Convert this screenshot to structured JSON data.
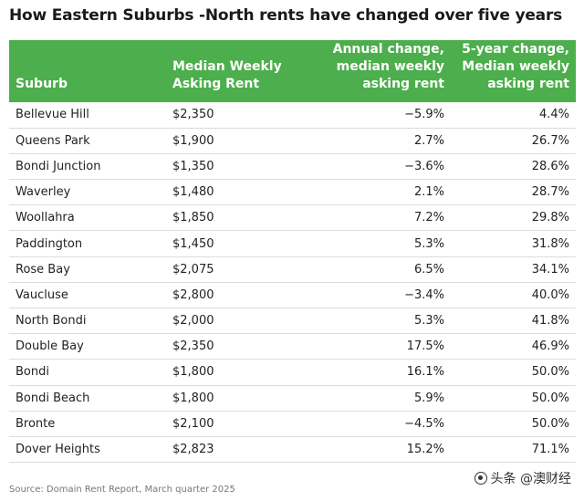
{
  "title": "How Eastern Suburbs -North rents have changed over five years",
  "table": {
    "headers": {
      "suburb": "Suburb",
      "rent_line1": "Median Weekly",
      "rent_line2": "Asking Rent",
      "annual_line1": "Annual change,",
      "annual_line2": "median weekly",
      "annual_line3": "asking rent",
      "five_line1": "5-year change,",
      "five_line2": "Median weekly",
      "five_line3": "asking rent"
    },
    "header_color": "#4cae4c",
    "rows": [
      {
        "suburb": "Bellevue Hill",
        "rent": "$2,350",
        "annual": "−5.9%",
        "five": "4.4%"
      },
      {
        "suburb": "Queens Park",
        "rent": "$1,900",
        "annual": "2.7%",
        "five": "26.7%"
      },
      {
        "suburb": "Bondi Junction",
        "rent": "$1,350",
        "annual": "−3.6%",
        "five": "28.6%"
      },
      {
        "suburb": "Waverley",
        "rent": "$1,480",
        "annual": "2.1%",
        "five": "28.7%"
      },
      {
        "suburb": "Woollahra",
        "rent": "$1,850",
        "annual": "7.2%",
        "five": "29.8%"
      },
      {
        "suburb": "Paddington",
        "rent": "$1,450",
        "annual": "5.3%",
        "five": "31.8%"
      },
      {
        "suburb": "Rose Bay",
        "rent": "$2,075",
        "annual": "6.5%",
        "five": "34.1%"
      },
      {
        "suburb": "Vaucluse",
        "rent": "$2,800",
        "annual": "−3.4%",
        "five": "40.0%"
      },
      {
        "suburb": "North Bondi",
        "rent": "$2,000",
        "annual": "5.3%",
        "five": "41.8%"
      },
      {
        "suburb": "Double Bay",
        "rent": "$2,350",
        "annual": "17.5%",
        "five": "46.9%"
      },
      {
        "suburb": "Bondi",
        "rent": "$1,800",
        "annual": "16.1%",
        "five": "50.0%"
      },
      {
        "suburb": "Bondi Beach",
        "rent": "$1,800",
        "annual": "5.9%",
        "five": "50.0%"
      },
      {
        "suburb": "Bronte",
        "rent": "$2,100",
        "annual": "−4.5%",
        "five": "50.0%"
      },
      {
        "suburb": "Dover Heights",
        "rent": "$2,823",
        "annual": "15.2%",
        "five": "71.1%"
      }
    ]
  },
  "source": "Source: Domain Rent Report, March quarter 2025",
  "watermark": {
    "text": "头条 @澳财经",
    "icon": "toutiao-logo-icon"
  }
}
